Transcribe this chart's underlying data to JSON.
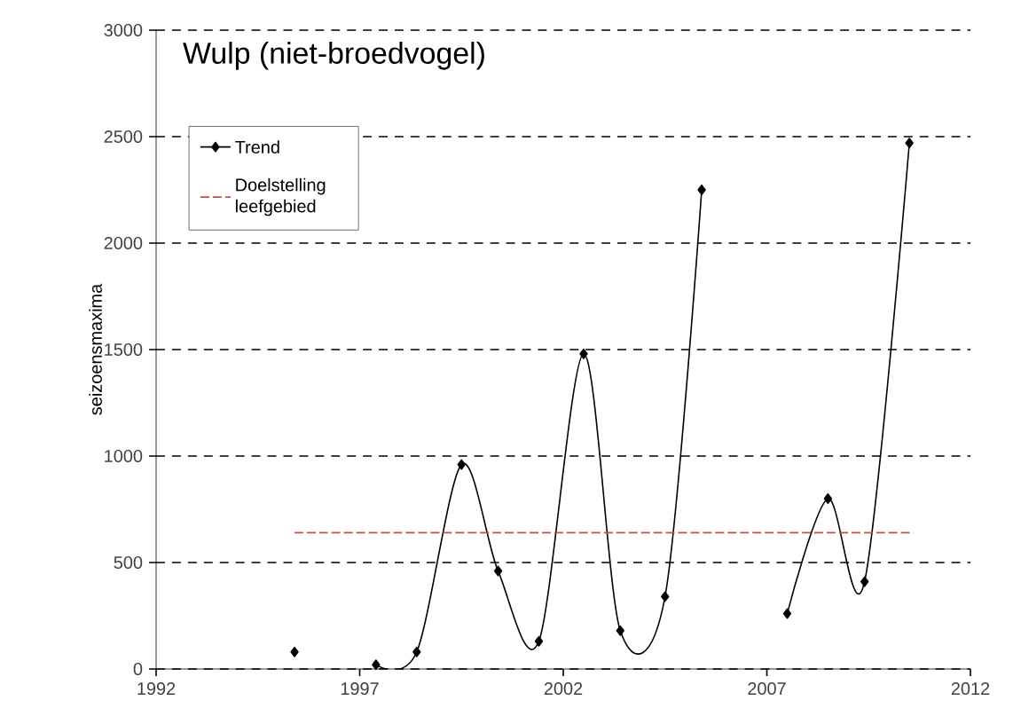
{
  "chart_data": {
    "type": "line",
    "title": "Wulp (niet-broedvogel)",
    "ylabel": "seizoensmaxima",
    "xlim": [
      1992,
      2012
    ],
    "xticks": [
      1992,
      1997,
      2002,
      2007,
      2012
    ],
    "ylim": [
      0,
      3000
    ],
    "yticks": [
      0,
      500,
      1000,
      1500,
      2000,
      2500,
      3000
    ],
    "grid": "y",
    "legend": "top left",
    "series": [
      {
        "name": "Trend",
        "color": "#000000",
        "marker": "diamond",
        "line_style": "solid",
        "x": [
          1995.4,
          1996.4,
          1997.4,
          1998.4,
          1999.5,
          2000.4,
          2001.4,
          2002.5,
          2003.4,
          2004.5,
          2005.4,
          2006.5,
          2007.5,
          2008.5,
          2009.4,
          2010.5
        ],
        "values": [
          80,
          null,
          20,
          80,
          960,
          460,
          130,
          1480,
          180,
          340,
          2250,
          null,
          260,
          800,
          410,
          2470
        ]
      },
      {
        "name": "Doelstelling leefgebied",
        "color": "#c0504d",
        "marker": "none",
        "line_style": "dashed",
        "x": [
          1995.4,
          2010.6
        ],
        "values": [
          640,
          640
        ]
      }
    ]
  }
}
